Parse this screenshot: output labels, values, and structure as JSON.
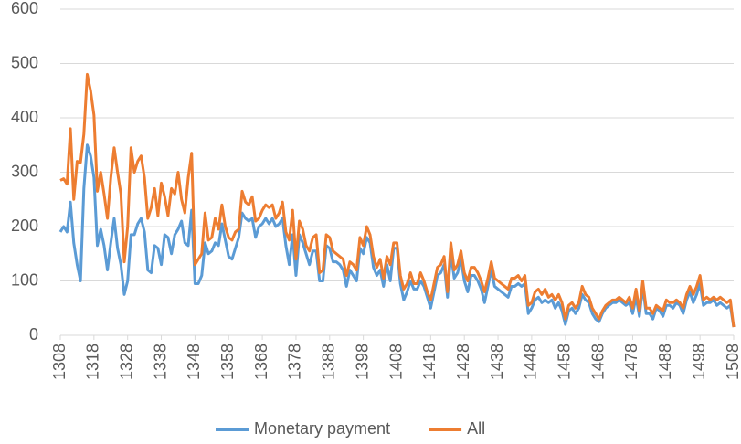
{
  "chart_data": {
    "type": "line",
    "x": [
      1308,
      1309,
      1310,
      1311,
      1312,
      1313,
      1314,
      1315,
      1316,
      1317,
      1318,
      1319,
      1320,
      1321,
      1322,
      1323,
      1324,
      1325,
      1326,
      1327,
      1328,
      1329,
      1330,
      1331,
      1332,
      1333,
      1334,
      1335,
      1336,
      1337,
      1338,
      1339,
      1340,
      1341,
      1342,
      1343,
      1344,
      1345,
      1346,
      1347,
      1348,
      1349,
      1350,
      1351,
      1352,
      1353,
      1354,
      1355,
      1356,
      1357,
      1358,
      1359,
      1360,
      1361,
      1362,
      1363,
      1364,
      1365,
      1366,
      1367,
      1368,
      1369,
      1370,
      1371,
      1372,
      1373,
      1374,
      1375,
      1376,
      1377,
      1378,
      1379,
      1380,
      1381,
      1382,
      1383,
      1384,
      1385,
      1386,
      1387,
      1388,
      1389,
      1390,
      1391,
      1392,
      1393,
      1394,
      1395,
      1396,
      1397,
      1398,
      1399,
      1400,
      1401,
      1402,
      1403,
      1404,
      1405,
      1406,
      1407,
      1408,
      1409,
      1410,
      1411,
      1412,
      1413,
      1414,
      1415,
      1416,
      1417,
      1418,
      1419,
      1420,
      1421,
      1422,
      1423,
      1424,
      1425,
      1426,
      1427,
      1428,
      1429,
      1430,
      1431,
      1432,
      1433,
      1434,
      1435,
      1436,
      1437,
      1438,
      1439,
      1440,
      1441,
      1442,
      1443,
      1444,
      1445,
      1446,
      1447,
      1448,
      1449,
      1450,
      1451,
      1452,
      1453,
      1454,
      1455,
      1456,
      1457,
      1458,
      1459,
      1460,
      1461,
      1462,
      1463,
      1464,
      1465,
      1466,
      1467,
      1468,
      1469,
      1470,
      1471,
      1472,
      1473,
      1474,
      1475,
      1476,
      1477,
      1478,
      1479,
      1480,
      1481,
      1482,
      1483,
      1484,
      1485,
      1486,
      1487,
      1488,
      1489,
      1490,
      1491,
      1492,
      1493,
      1494,
      1495,
      1496,
      1497,
      1498,
      1499,
      1500,
      1501,
      1502,
      1503,
      1504,
      1505,
      1506,
      1507,
      1508
    ],
    "series": [
      {
        "name": "Monetary payment",
        "color": "#5b9bd5",
        "values": [
          190,
          200,
          190,
          245,
          170,
          130,
          100,
          270,
          350,
          330,
          290,
          165,
          195,
          165,
          120,
          170,
          215,
          160,
          130,
          75,
          100,
          185,
          185,
          205,
          215,
          190,
          120,
          115,
          165,
          160,
          130,
          185,
          180,
          150,
          185,
          195,
          210,
          170,
          165,
          230,
          95,
          95,
          110,
          170,
          150,
          155,
          170,
          165,
          205,
          175,
          145,
          140,
          160,
          180,
          225,
          215,
          210,
          215,
          180,
          200,
          205,
          215,
          205,
          215,
          200,
          205,
          215,
          165,
          130,
          185,
          110,
          185,
          170,
          150,
          130,
          155,
          155,
          100,
          100,
          165,
          160,
          135,
          135,
          130,
          120,
          90,
          120,
          110,
          100,
          160,
          150,
          180,
          170,
          125,
          110,
          120,
          90,
          130,
          100,
          160,
          160,
          95,
          65,
          80,
          100,
          85,
          85,
          100,
          90,
          70,
          50,
          80,
          110,
          115,
          130,
          70,
          150,
          105,
          115,
          140,
          100,
          80,
          110,
          110,
          100,
          85,
          60,
          90,
          120,
          90,
          85,
          80,
          75,
          70,
          90,
          90,
          95,
          90,
          95,
          40,
          50,
          65,
          70,
          60,
          65,
          60,
          65,
          50,
          60,
          45,
          20,
          45,
          50,
          40,
          50,
          75,
          65,
          60,
          40,
          30,
          25,
          40,
          50,
          55,
          60,
          60,
          65,
          60,
          55,
          60,
          40,
          70,
          35,
          90,
          40,
          40,
          30,
          50,
          45,
          35,
          55,
          55,
          50,
          60,
          55,
          40,
          65,
          80,
          60,
          75,
          95,
          55,
          60,
          60,
          65,
          55,
          60,
          55,
          50,
          55,
          15
        ]
      },
      {
        "name": "All",
        "color": "#ed7d31",
        "values": [
          285,
          288,
          278,
          380,
          250,
          320,
          318,
          370,
          480,
          450,
          405,
          265,
          300,
          260,
          215,
          290,
          345,
          300,
          260,
          135,
          200,
          345,
          300,
          320,
          330,
          290,
          215,
          235,
          270,
          220,
          280,
          255,
          220,
          270,
          260,
          300,
          250,
          225,
          290,
          335,
          130,
          140,
          150,
          225,
          175,
          180,
          215,
          195,
          240,
          200,
          180,
          175,
          190,
          195,
          265,
          245,
          240,
          255,
          210,
          215,
          230,
          240,
          235,
          240,
          215,
          225,
          245,
          190,
          175,
          230,
          140,
          210,
          195,
          165,
          155,
          180,
          185,
          115,
          120,
          185,
          180,
          155,
          150,
          145,
          140,
          110,
          135,
          130,
          120,
          180,
          165,
          200,
          185,
          145,
          125,
          140,
          105,
          145,
          130,
          170,
          170,
          110,
          85,
          95,
          115,
          95,
          95,
          115,
          100,
          80,
          65,
          95,
          125,
          130,
          145,
          80,
          170,
          120,
          130,
          155,
          115,
          100,
          125,
          125,
          115,
          100,
          80,
          105,
          135,
          105,
          100,
          95,
          90,
          85,
          105,
          105,
          110,
          100,
          110,
          55,
          60,
          80,
          85,
          75,
          85,
          70,
          75,
          65,
          75,
          60,
          30,
          55,
          60,
          50,
          60,
          90,
          75,
          70,
          50,
          40,
          30,
          45,
          55,
          60,
          65,
          65,
          70,
          65,
          60,
          70,
          50,
          85,
          45,
          100,
          50,
          50,
          40,
          55,
          50,
          45,
          65,
          60,
          60,
          65,
          60,
          50,
          75,
          90,
          75,
          90,
          110,
          65,
          70,
          65,
          70,
          65,
          70,
          65,
          60,
          65,
          15
        ]
      }
    ],
    "xlim": [
      1308,
      1508
    ],
    "xticks": [
      1308,
      1318,
      1328,
      1338,
      1348,
      1358,
      1368,
      1378,
      1388,
      1398,
      1408,
      1418,
      1428,
      1438,
      1448,
      1458,
      1468,
      1478,
      1488,
      1498,
      1508
    ],
    "ylim": [
      0,
      600
    ],
    "yticks": [
      0,
      100,
      200,
      300,
      400,
      500,
      600
    ],
    "grid": true,
    "legend": "bottom"
  }
}
